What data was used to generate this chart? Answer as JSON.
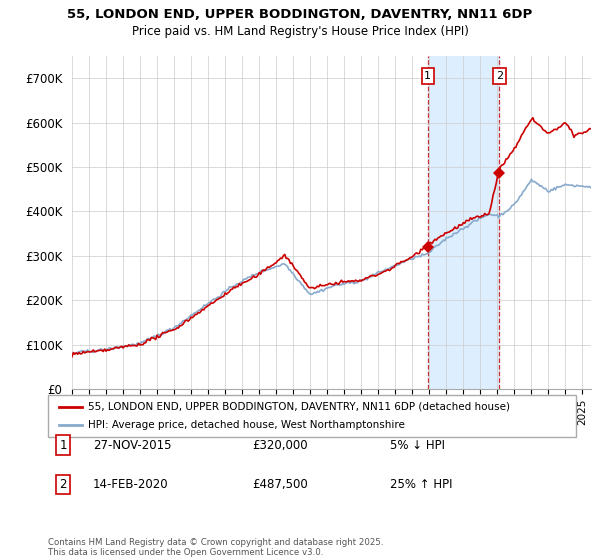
{
  "title": "55, LONDON END, UPPER BODDINGTON, DAVENTRY, NN11 6DP",
  "subtitle": "Price paid vs. HM Land Registry's House Price Index (HPI)",
  "ylim": [
    0,
    750000
  ],
  "yticks": [
    0,
    100000,
    200000,
    300000,
    400000,
    500000,
    600000,
    700000
  ],
  "ytick_labels": [
    "£0",
    "£100K",
    "£200K",
    "£300K",
    "£400K",
    "£500K",
    "£600K",
    "£700K"
  ],
  "xlim_start": 1995.0,
  "xlim_end": 2025.5,
  "sale1_x": 2015.91,
  "sale1_y": 320000,
  "sale2_x": 2020.12,
  "sale2_y": 487500,
  "sale1_label": "27-NOV-2015",
  "sale1_price": "£320,000",
  "sale1_hpi": "5% ↓ HPI",
  "sale2_label": "14-FEB-2020",
  "sale2_price": "£487,500",
  "sale2_hpi": "25% ↑ HPI",
  "legend_line1": "55, LONDON END, UPPER BODDINGTON, DAVENTRY, NN11 6DP (detached house)",
  "legend_line2": "HPI: Average price, detached house, West Northamptonshire",
  "footer": "Contains HM Land Registry data © Crown copyright and database right 2025.\nThis data is licensed under the Open Government Licence v3.0.",
  "line_color_red": "#cc0000",
  "line_color_blue": "#88aacc",
  "background_color": "#ffffff",
  "shade_color": "#ddeeff"
}
